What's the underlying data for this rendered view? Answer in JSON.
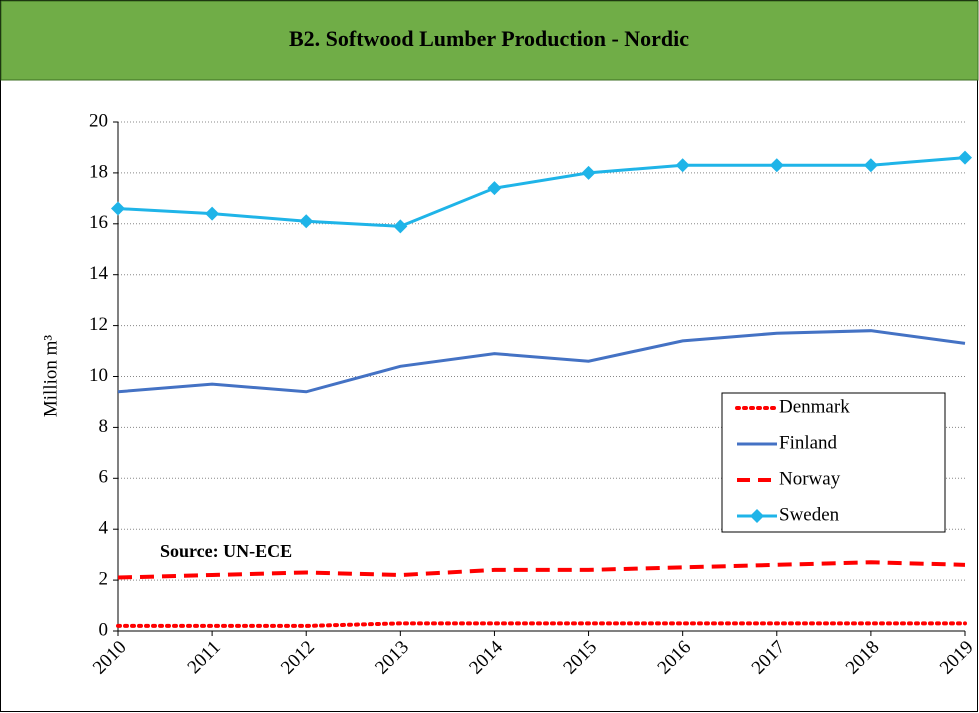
{
  "chart_data": {
    "type": "line",
    "title": "B2. Softwood Lumber Production - Nordic",
    "y_label": "Million m³",
    "annotation": "Source: UN-ECE",
    "categories": [
      "2010",
      "2011",
      "2012",
      "2013",
      "2014",
      "2015",
      "2016",
      "2017",
      "2018",
      "2019"
    ],
    "series": [
      {
        "name": "Denmark",
        "color": "#ff0000",
        "line_style": "dotted",
        "values": [
          0.2,
          0.2,
          0.2,
          0.3,
          0.3,
          0.3,
          0.3,
          0.3,
          0.3,
          0.3
        ]
      },
      {
        "name": "Finland",
        "color": "#4472c4",
        "line_style": "solid",
        "values": [
          9.4,
          9.7,
          9.4,
          10.4,
          10.9,
          10.6,
          11.4,
          11.7,
          11.8,
          11.3
        ]
      },
      {
        "name": "Norway",
        "color": "#ff0000",
        "line_style": "dashed",
        "values": [
          2.1,
          2.2,
          2.3,
          2.2,
          2.4,
          2.4,
          2.5,
          2.6,
          2.7,
          2.6
        ]
      },
      {
        "name": "Sweden",
        "color": "#1fb4e8",
        "line_style": "solid",
        "marker": "diamond",
        "values": [
          16.6,
          16.4,
          16.1,
          15.9,
          17.4,
          18.0,
          18.3,
          18.3,
          18.3,
          18.6
        ]
      }
    ],
    "ylim": [
      0,
      20
    ],
    "yticks": [
      0,
      2,
      4,
      6,
      8,
      10,
      12,
      14,
      16,
      18,
      20
    ],
    "grid": true
  }
}
